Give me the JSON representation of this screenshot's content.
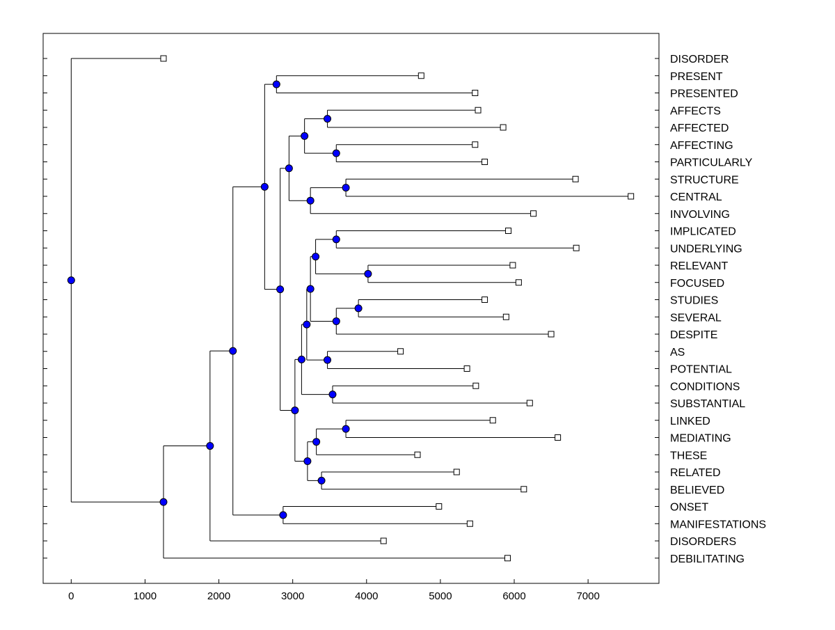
{
  "chart_data": {
    "type": "dendrogram",
    "title": "",
    "xlabel": "",
    "ylabel": "",
    "xlim": [
      -380,
      7960
    ],
    "x_ticks": [
      0,
      1000,
      2000,
      3000,
      4000,
      5000,
      6000,
      7000
    ],
    "x_tick_labels": [
      "0",
      "1000",
      "2000",
      "3000",
      "4000",
      "5000",
      "6000",
      "7000"
    ],
    "grid": false,
    "colors": {
      "node": "#0000ff",
      "line": "#000000",
      "leaf_fill": "#ffffff"
    },
    "leaves": [
      {
        "label": "DISORDER",
        "x": 1250
      },
      {
        "label": "PRESENT",
        "x": 4740
      },
      {
        "label": "PRESENTED",
        "x": 5470
      },
      {
        "label": "AFFECTS",
        "x": 5510
      },
      {
        "label": "AFFECTED",
        "x": 5850
      },
      {
        "label": "AFFECTING",
        "x": 5470
      },
      {
        "label": "PARTICULARLY",
        "x": 5600
      },
      {
        "label": "STRUCTURE",
        "x": 6830
      },
      {
        "label": "CENTRAL",
        "x": 7580
      },
      {
        "label": "INVOLVING",
        "x": 6260
      },
      {
        "label": "IMPLICATED",
        "x": 5920
      },
      {
        "label": "UNDERLYING",
        "x": 6840
      },
      {
        "label": "RELEVANT",
        "x": 5980
      },
      {
        "label": "FOCUSED",
        "x": 6060
      },
      {
        "label": "STUDIES",
        "x": 5600
      },
      {
        "label": "SEVERAL",
        "x": 5890
      },
      {
        "label": "DESPITE",
        "x": 6500
      },
      {
        "label": "AS",
        "x": 4460
      },
      {
        "label": "POTENTIAL",
        "x": 5360
      },
      {
        "label": "CONDITIONS",
        "x": 5480
      },
      {
        "label": "SUBSTANTIAL",
        "x": 6210
      },
      {
        "label": "LINKED",
        "x": 5710
      },
      {
        "label": "MEDIATING",
        "x": 6590
      },
      {
        "label": "THESE",
        "x": 4690
      },
      {
        "label": "RELATED",
        "x": 5220
      },
      {
        "label": "BELIEVED",
        "x": 6130
      },
      {
        "label": "ONSET",
        "x": 4980
      },
      {
        "label": "MANIFESTATIONS",
        "x": 5400
      },
      {
        "label": "DISORDERS",
        "x": 4230
      },
      {
        "label": "DEBILITATING",
        "x": 5910
      }
    ],
    "merges": [
      {
        "id": "n1",
        "x": 2780,
        "children": [
          "DISORDER_dummy"
        ]
      }
    ]
  }
}
